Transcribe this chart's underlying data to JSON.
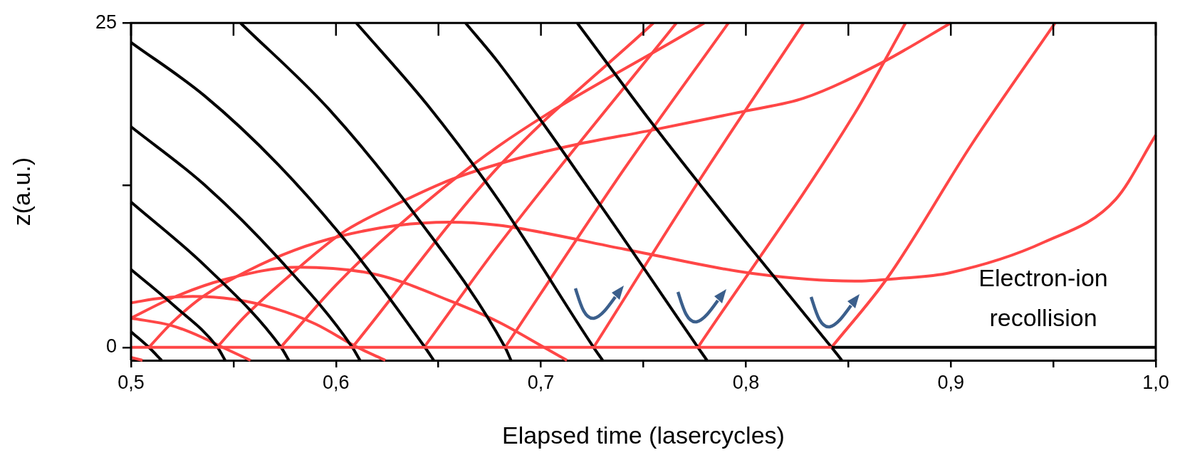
{
  "chart_data": {
    "type": "line",
    "xlabel": "Elapsed time (lasercycles)",
    "ylabel": "z(a.u.)",
    "xlim": [
      0.5,
      1.0
    ],
    "ylim": [
      -1,
      25
    ],
    "xticks": [
      {
        "value": 0.5,
        "label": "0,5"
      },
      {
        "value": 0.55,
        "label": null
      },
      {
        "value": 0.6,
        "label": "0,6"
      },
      {
        "value": 0.65,
        "label": null
      },
      {
        "value": 0.7,
        "label": "0,7"
      },
      {
        "value": 0.75,
        "label": null
      },
      {
        "value": 0.8,
        "label": "0,8"
      },
      {
        "value": 0.85,
        "label": null
      },
      {
        "value": 0.9,
        "label": "0,9"
      },
      {
        "value": 0.95,
        "label": null
      },
      {
        "value": 1.0,
        "label": "1,0"
      }
    ],
    "yticks": [
      0,
      {
        "value": 12.5,
        "label": null
      },
      25
    ],
    "grid": false,
    "legend": false,
    "marker": "none",
    "line_style": "solid",
    "annotations": [
      "Electron-ion recollision"
    ],
    "series": [
      {
        "color": "#ff4646",
        "x": [
          0.5,
          0.8418
        ],
        "values": [
          0,
          0
        ]
      },
      {
        "color": "#000000",
        "x": [
          0.8418,
          1.0
        ],
        "values": [
          0,
          0
        ]
      },
      {
        "color": "#000000",
        "x": [
          0.5,
          0.5087,
          0.5149
        ],
        "values": [
          1.2,
          0,
          -1
        ]
      },
      {
        "color": "#000000",
        "x": [
          0.5,
          0.5211,
          0.5422,
          0.5459
        ],
        "values": [
          6.0,
          3.2,
          0,
          -1
        ]
      },
      {
        "color": "#000000",
        "x": [
          0.5,
          0.5366,
          0.5732,
          0.577
        ],
        "values": [
          11.2,
          6.21,
          0,
          -1
        ]
      },
      {
        "color": "#000000",
        "x": [
          0.5,
          0.536,
          0.572,
          0.608,
          0.6117
        ],
        "values": [
          17.0,
          12.5,
          6.85,
          0,
          -1
        ]
      },
      {
        "color": "#000000",
        "x": [
          0.5,
          0.5359,
          0.5717,
          0.6075,
          0.6434,
          0.6477
        ],
        "values": [
          23.5,
          19.38,
          14.1,
          7.65,
          0,
          -1
        ]
      },
      {
        "color": "#000000",
        "x": [
          0.5534,
          0.5965,
          0.6394,
          0.6825,
          0.6854
        ],
        "values": [
          25,
          18.36,
          10.05,
          0,
          -1
        ]
      },
      {
        "color": "#000000",
        "x": [
          0.6099,
          0.645,
          0.6792,
          0.7257,
          0.7301
        ],
        "values": [
          25,
          18.6,
          11.37,
          0,
          -1
        ]
      },
      {
        "color": "#000000",
        "x": [
          0.6632,
          0.6792,
          0.7289,
          0.7766,
          0.781
        ],
        "values": [
          25,
          21.96,
          10.98,
          0,
          -1
        ]
      },
      {
        "color": "#000000",
        "x": [
          0.7177,
          0.7562,
          0.7984,
          0.8418,
          0.8468
        ],
        "values": [
          25,
          16.86,
          8.43,
          0,
          -1
        ]
      },
      {
        "color": "#ff4646",
        "x": [
          0.5,
          0.5056
        ],
        "values": [
          -0.78,
          -1
        ]
      },
      {
        "color": "#ff4646",
        "x": [
          0.5,
          0.52,
          0.535,
          0.5447,
          0.5583
        ],
        "values": [
          2.25,
          1.67,
          0.75,
          0,
          -1
        ]
      },
      {
        "color": "#ff4646",
        "x": [
          0.5,
          0.515,
          0.53,
          0.55,
          0.57,
          0.59,
          0.6105,
          0.6241
        ],
        "values": [
          3.43,
          3.8,
          3.92,
          3.7,
          3.0,
          1.8,
          0,
          -1
        ]
      },
      {
        "color": "#ff4646",
        "x": [
          0.5,
          0.52,
          0.545,
          0.5819,
          0.62,
          0.6564,
          0.6792,
          0.7015,
          0.7127
        ],
        "values": [
          2.25,
          3.8,
          5.2,
          6.18,
          5.6,
          3.53,
          1.96,
          0,
          -1
        ]
      },
      {
        "color": "#ff4646",
        "x": [
          0.5087,
          0.52,
          0.535,
          0.557,
          0.58,
          0.603,
          0.63,
          0.655,
          0.6792,
          0.7413,
          0.8033,
          0.853,
          0.874,
          0.8993,
          0.9457,
          0.9804,
          1.0
        ],
        "values": [
          0,
          1.9,
          3.9,
          5.9,
          7.5,
          8.6,
          9.4,
          9.65,
          9.41,
          7.55,
          5.69,
          5.1,
          5.3,
          5.74,
          8.12,
          11.4,
          16.36
        ]
      },
      {
        "color": "#ff4646",
        "x": [
          0.542,
          0.555,
          0.575,
          0.603,
          0.6316,
          0.6564,
          0.6897,
          0.7164,
          0.7549,
          0.8008,
          0.8282,
          0.8666,
          0.9
        ],
        "values": [
          0,
          2.3,
          5.2,
          8.82,
          11.18,
          12.94,
          14.6,
          15.6,
          16.76,
          18.24,
          19.2,
          21.96,
          25
        ]
      },
      {
        "color": "#ff4646",
        "x": [
          0.573,
          0.6,
          0.63,
          0.6792,
          0.7797
        ],
        "values": [
          0,
          4.8,
          9.3,
          15.5,
          25
        ]
      },
      {
        "color": "#ff4646",
        "x": [
          0.608,
          0.6792,
          0.7549
        ],
        "values": [
          0,
          13.9,
          25
        ]
      },
      {
        "color": "#ff4646",
        "x": [
          0.643,
          0.6792,
          0.7661
        ],
        "values": [
          0,
          7.84,
          25
        ]
      },
      {
        "color": "#ff4646",
        "x": [
          0.6825,
          0.74,
          0.7915
        ],
        "values": [
          0,
          13.6,
          25
        ]
      },
      {
        "color": "#ff4646",
        "x": [
          0.7257,
          0.777,
          0.8282
        ],
        "values": [
          0,
          12.8,
          25
        ]
      },
      {
        "color": "#ff4646",
        "x": [
          0.7766,
          0.853,
          0.8779
        ],
        "values": [
          0,
          18.0,
          25
        ]
      },
      {
        "color": "#ff4646",
        "x": [
          0.8418,
          0.8692,
          0.91,
          0.9509
        ],
        "values": [
          0,
          5.38,
          15.6,
          25
        ]
      }
    ]
  }
}
